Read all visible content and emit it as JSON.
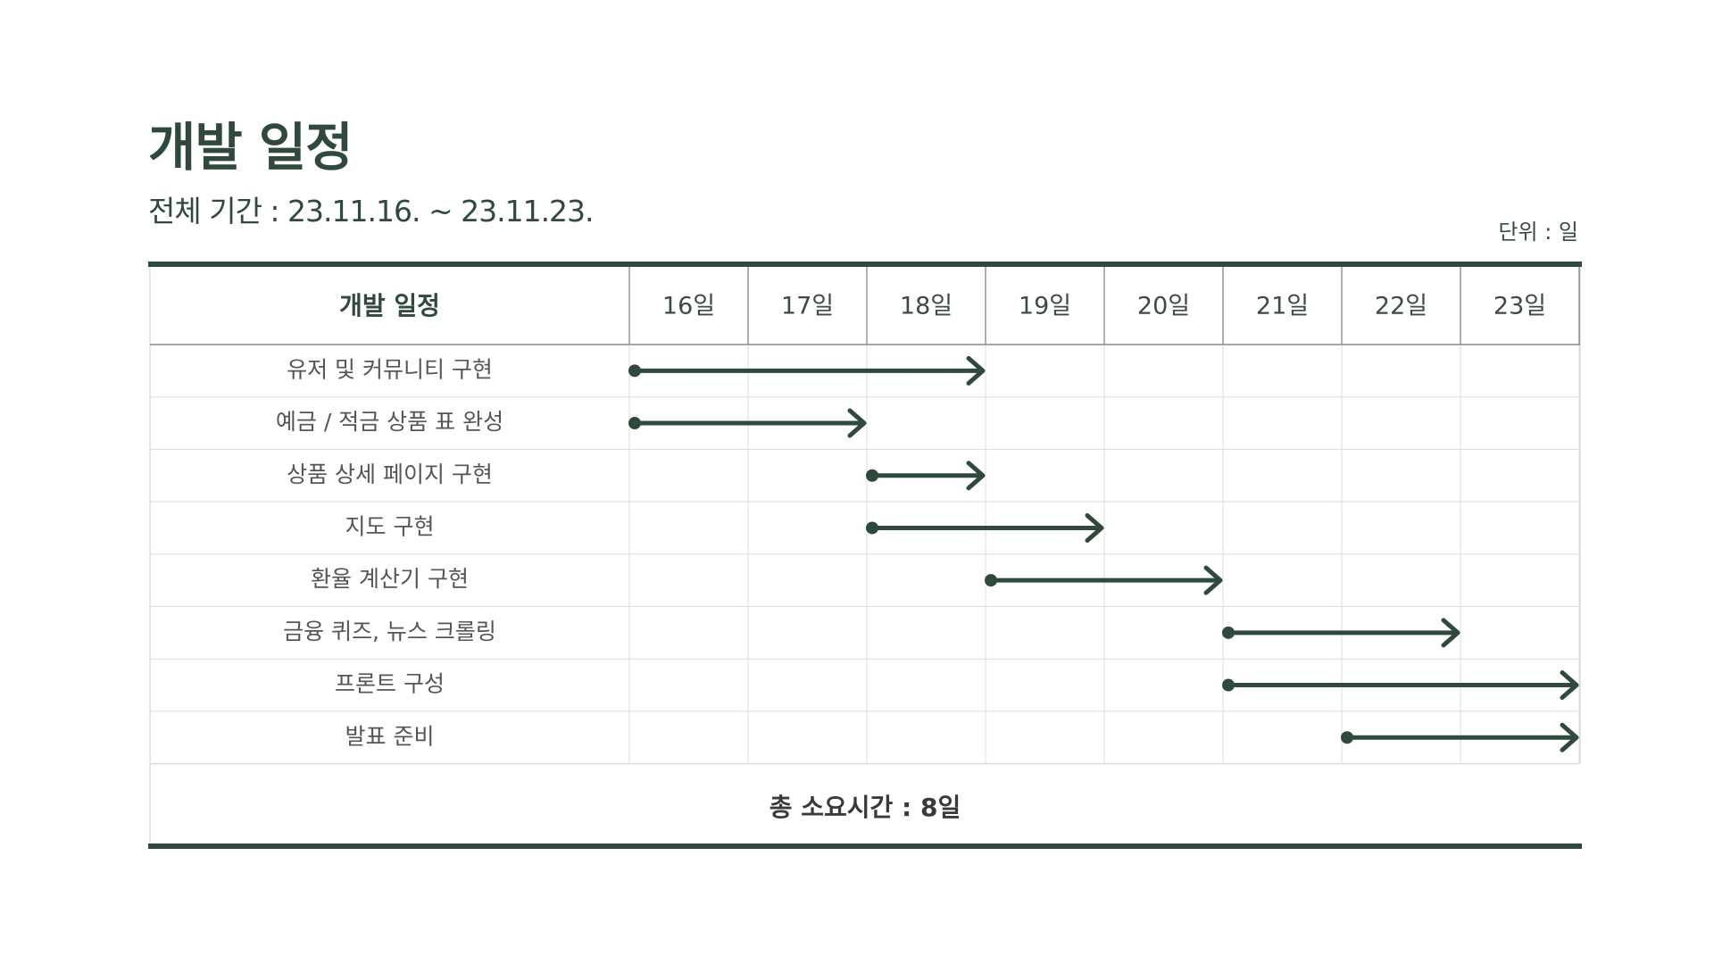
{
  "page": {
    "title": "개발 일정",
    "subtitle": "전체 기간 : 23.11.16. ~ 23.11.23.",
    "unit": "단위 : 일"
  },
  "colors": {
    "accent": "#2f4a3c",
    "grid": "#dcdcdc",
    "text": "#555555"
  },
  "chart_data": {
    "type": "table",
    "header_label": "개발 일정",
    "days": [
      "16일",
      "17일",
      "18일",
      "19일",
      "20일",
      "21일",
      "22일",
      "23일"
    ],
    "tasks": [
      {
        "name": "유저 및 커뮤니티 구현",
        "start": 16,
        "end": 19
      },
      {
        "name": "예금 / 적금 상품 표 완성",
        "start": 16,
        "end": 18
      },
      {
        "name": "상품 상세 페이지 구현",
        "start": 18,
        "end": 19
      },
      {
        "name": "지도 구현",
        "start": 18,
        "end": 20
      },
      {
        "name": "환율 계산기 구현",
        "start": 19,
        "end": 21
      },
      {
        "name": "금융 퀴즈, 뉴스 크롤링",
        "start": 21,
        "end": 23
      },
      {
        "name": "프론트 구성",
        "start": 21,
        "end": 24
      },
      {
        "name": "발표 준비",
        "start": 22,
        "end": 24
      }
    ],
    "footer": "총 소요시간 : 8일"
  }
}
